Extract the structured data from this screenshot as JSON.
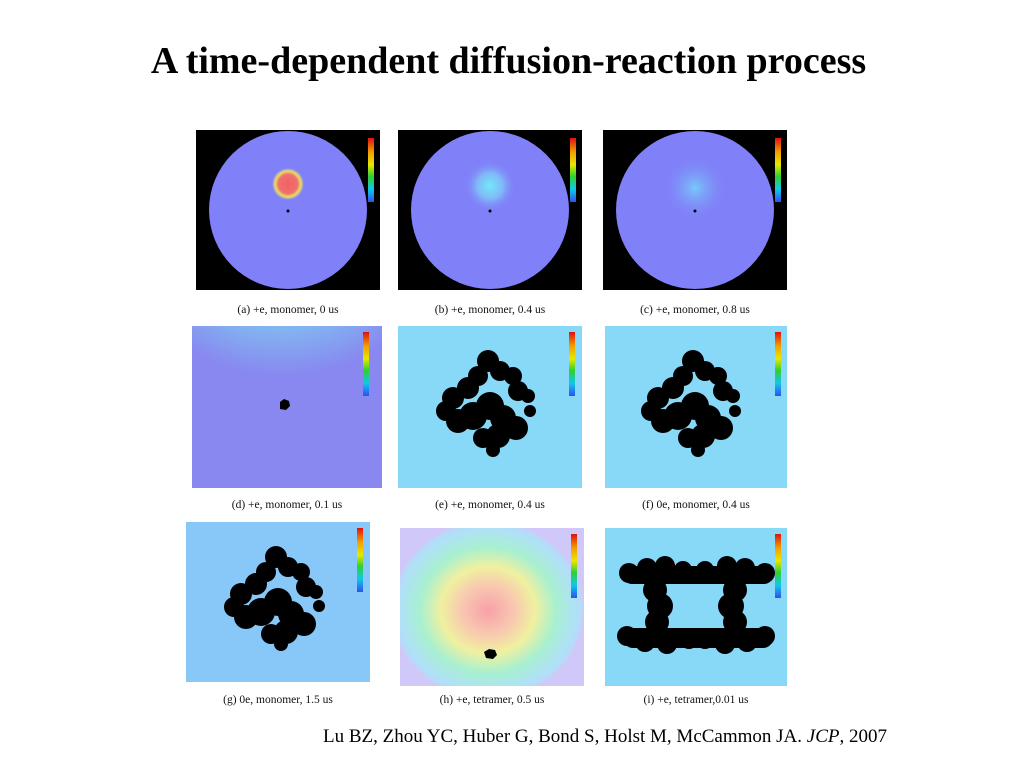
{
  "slide": {
    "title": "A time-dependent diffusion-reaction process",
    "citation": {
      "authors": "Lu BZ, Zhou YC, Huber G, Bond S, Holst M, McCammon JA.",
      "journal": "JCP",
      "year": ", 2007"
    }
  },
  "figure": {
    "panels": [
      {
        "caption": "(a) +e, monomer, 0 us"
      },
      {
        "caption": "(b) +e, monomer, 0.4 us"
      },
      {
        "caption": "(c) +e, monomer, 0.8 us"
      },
      {
        "caption": "(d) +e, monomer, 0.1 us"
      },
      {
        "caption": "(e) +e, monomer, 0.4 us"
      },
      {
        "caption": "(f) 0e, monomer, 0.4 us"
      },
      {
        "caption": "(g) 0e, monomer, 1.5 us"
      },
      {
        "caption": "(h) +e, tetramer, 0.5 us"
      },
      {
        "caption": "(i) +e, tetramer,0.01 us"
      }
    ]
  }
}
